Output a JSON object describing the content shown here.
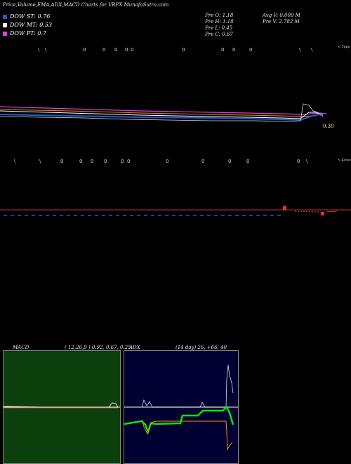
{
  "header": {
    "title": "Price,Volume,EMA,ADX,MACD Charts for VRPX  MunafaSutra.com"
  },
  "legend": [
    {
      "label": "DOW ST: 0.76",
      "color": "#1f5bd6"
    },
    {
      "label": "DOW MT: 0.53",
      "color": "#ffffff"
    },
    {
      "label": "DOW PT: 0.7",
      "color": "#e040e0"
    }
  ],
  "prev": {
    "open": "Pre   O: 1.18",
    "high": "Pre   H: 1.18",
    "low": "Pre   L: 0.45",
    "close": "Pre   C: 0.67",
    "avg_volume": "Avg V: 0.009 M",
    "prev_volume": "Pre   V: 2.782  M"
  },
  "price_panel": {
    "top_label": "< Tops",
    "price_label": "0.30"
  },
  "lows_label": "< Lows",
  "macd": {
    "title": "MACD",
    "params": "( 12,26,9 ) 0.92,  0.67,  0.25"
  },
  "adx": {
    "title": "ADX",
    "params": "(14  day) 26,  +66,  40"
  },
  "colors": {
    "background": "#000000",
    "macd_panel": "#0b3f0b",
    "adx_panel": "#000033",
    "dow_st": "#1f5bd6",
    "dow_pt": "#e040e0",
    "adx_plus": "#00ee00",
    "adx_minus": "#ff8c00"
  }
}
